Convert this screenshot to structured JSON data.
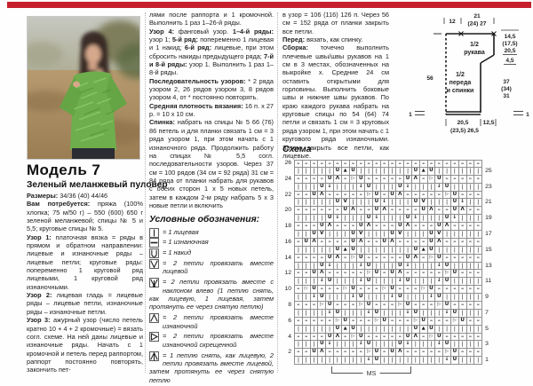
{
  "page": {
    "accent_color": "#c5202c"
  },
  "model": {
    "title": "Модель 7",
    "subtitle": "Зеленый меланжевый пуловер"
  },
  "photo": {
    "description": "woman in green melange lace pullover outdoors"
  },
  "col1": {
    "paragraphs": [
      [
        [
          "b",
          "Размеры:"
        ],
        [
          "r",
          " 34/36 (40) 44/46"
        ]
      ],
      [
        [
          "b",
          "Вам потребуется:"
        ],
        [
          "r",
          " пряжа (100% хлопка; 75 м/50 г) – 550 (600) 650 г зеленой меланжевой; спицы № 5 и 5,5; круговые спицы № 5."
        ]
      ],
      [
        [
          "b",
          "Узор 1:"
        ],
        [
          "r",
          " платочная вязка = ряды в прямом и обратном направлении: лицевые и изнаночные ряды – лицевые петли; круговые ряды: попеременно 1 круговой ряд лицевыми, 1 круговой ряд изнаночными."
        ]
      ],
      [
        [
          "b",
          "Узор 2:"
        ],
        [
          "r",
          " лицевая гладь = лицевые ряды – лицевые петли, изнаночные ряды – изнаночные петли."
        ]
      ],
      [
        [
          "b",
          "Узор 3:"
        ],
        [
          "r",
          " ажурный узор (число петель кратно 10 + 4 + 2 кромочные) = вязать согл. схеме. На ней даны лицевые и изнаночные ряды. Начать с 1 кромочной и петель перед раппортом, раппорт постоянно повторять, закончить пет-"
        ]
      ]
    ]
  },
  "col2": {
    "paragraphs": [
      [
        [
          "r",
          "лями после раппорта и 1 кромочной. Выполнить 1 раз 1–26-й ряды."
        ]
      ],
      [
        [
          "b",
          "Узор 4:"
        ],
        [
          "r",
          " фанговый узор. "
        ],
        [
          "b",
          "1–4-й ряды:"
        ],
        [
          "r",
          " узор 1; "
        ],
        [
          "b",
          "5-й ряд:"
        ],
        [
          "r",
          " попеременно 1 лицевая и 1 накид; "
        ],
        [
          "b",
          "6-й ряд:"
        ],
        [
          "r",
          " лицевые, при этом сбросить накиды предыдущего ряда; "
        ],
        [
          "b",
          "7-й и 8-й ряды:"
        ],
        [
          "r",
          " узор 1. Выполнить 1 раз 1–8-й ряды."
        ]
      ],
      [
        [
          "b",
          "Последовательность узоров:"
        ],
        [
          "r",
          " * 2 ряда узором 2, 26 рядов узором 3, 8 рядов узором 4, от * постоянно повторять."
        ]
      ],
      [
        [
          "b",
          "Средняя плотность вязания:"
        ],
        [
          "r",
          " 16 п. х 27 р. = 10 х 10 см."
        ]
      ],
      [
        [
          "b",
          "Спинка:"
        ],
        [
          "r",
          " набрать на спицы № 5 66 (76) 86 петель и для планки связать 1 см = 3 ряда узором 1, при этом начать с 1 изнаночного ряда. Продолжить работу на спицах № 5,5 согл. последовательности узоров. Через 37 см = 100 рядов (34 см = 92 ряда) 31 см = 84 ряда от планки набрать для рукавов с обеих сторон 1 х 5 новых петель, затем в каждом 2-м ряду набрать 5 х 3 новые петли и включить"
        ]
      ]
    ],
    "legend": {
      "heading": "Условные обозначения:",
      "items": [
        {
          "icon": "knit-icon",
          "text": "= 1 лицевая"
        },
        {
          "icon": "purl-icon",
          "text": "= 1 изнаночная"
        },
        {
          "icon": "yarn-over-icon",
          "text": "= 1 накид"
        },
        {
          "icon": "k2tog-icon",
          "text": "= 2 петли провязать вместе лицевой"
        },
        {
          "icon": "skp-icon",
          "text": "= 2 петли провязать вместе с наклоном влево (1 петлю снять, как лицевую, 1 лицевая, затем протянуть ее через снятую петлю)"
        },
        {
          "icon": "p2tog-icon",
          "text": "= 2 петли провязать вместе изнаночной"
        },
        {
          "icon": "p2tog-tbl-icon",
          "text": "= 2 петли провязать вместе изнаночной скрещенной"
        },
        {
          "icon": "sl1-k2tog-psso-icon",
          "text": "= 1 петлю снять, как лицевую, 2 петли провязать вместе лицевой, затем протянуть ее через снятую петлю"
        }
      ]
    }
  },
  "col3": {
    "paragraphs": [
      [
        [
          "r",
          "в узор = 106 (116) 126 п. Через 56 см = 152 ряда от планки закрыть все петли."
        ]
      ],
      [
        [
          "b",
          "Перед:"
        ],
        [
          "r",
          " вязать, как спинку."
        ]
      ],
      [
        [
          "b",
          "Сборка:"
        ],
        [
          "r",
          " точечно выполнить плечевые швы/швы рукавов на 1 см в 3 местах, обозначенных на выкройке х. Средние 24 см оставить открытыми для горловины. Выполнить боковые швы и нижние швы рукавов. По краю каждого рукава набрать на круговые спицы по 54 (64) 74 петли и связать 1 см = 3 круговых ряда узором 1, при этом начать с 1 кругового ряда изнаночными. Затем закрыть все петли, как лицевые."
        ]
      ]
    ],
    "chart_heading": "Схема"
  },
  "schematic": {
    "top_left": "12",
    "top_right_1": "21",
    "top_right_2": "(24) 27",
    "left_height": "56",
    "sleeve_1": "1/2",
    "sleeve_2": "рукава",
    "body_1": "1/2",
    "body_2": "переда",
    "body_3": "и спинки",
    "right_top_1": "14,5",
    "right_top_2": "(17,5)",
    "right_top_3": "20,5",
    "right_step": "4,5",
    "right_side_1": "37",
    "right_side_2": "(34)",
    "right_side_3": "31",
    "bottom_1": "20,5",
    "bottom_2": "(23,5) 26,5",
    "bottom_right": "12,5",
    "border_left": "1",
    "border_right": "1"
  },
  "chart": {
    "ms_label": "MS",
    "symbol_map": {
      "k": "|",
      "p": "–",
      "o": "U",
      "v": "V",
      "w": "↓",
      "a": "Λ",
      "x": "▷",
      "t": "▲"
    },
    "rows": [
      {
        "l": "26",
        "r": "",
        "c": "pppppppppppppppppppppppp"
      },
      {
        "l": "",
        "r": "25",
        "c": "kkkkkotokkkkkkkotokkkkkk"
      },
      {
        "l": "24",
        "r": "",
        "c": "ppppoapxopppppoapxoppppp"
      },
      {
        "l": "",
        "r": "23",
        "c": "kkkowkkkwokkkowkkkwokkkk"
      },
      {
        "l": "22",
        "r": "",
        "c": "ppoapppppxopoapppppxoppp"
      },
      {
        "l": "",
        "r": "21",
        "c": "kkkkkovkkkowkkkovkkkowkk"
      },
      {
        "l": "20",
        "r": "",
        "c": "ppppppoappoappppoappoapp"
      },
      {
        "l": "",
        "r": "19",
        "c": "kkkkowkkkowkkkowkkkowkkk"
      },
      {
        "l": "18",
        "r": "",
        "c": "pppoapppoapppoapppoapppp"
      },
      {
        "l": "",
        "r": "17",
        "c": "kkovkkkovkkkovkkkovkkkkk"
      },
      {
        "l": "16",
        "r": "",
        "c": "poappppoappoappppoappppp"
      },
      {
        "l": "",
        "r": "15",
        "c": "kkkkkotokkkkkkkotokkkkkk"
      },
      {
        "l": "14",
        "r": "",
        "c": "ppppoapxopppppoapxoppppp"
      },
      {
        "l": "",
        "r": "13",
        "c": "kkkowkkkwokkkowkkkwokkkk"
      },
      {
        "l": "12",
        "r": "",
        "c": "ppoapppppxopoapppppxoppp"
      },
      {
        "l": "",
        "r": "11",
        "c": "kkkwokkkwokkkwokkkwokkkk"
      },
      {
        "l": "10",
        "r": "",
        "c": "pxopppxopppxopppxopppppp"
      },
      {
        "l": "",
        "r": "9",
        "c": "kkwokkkwokkkwokkkwokkkkk"
      },
      {
        "l": "8",
        "r": "",
        "c": "pppxopppxopppxopppxopppp"
      },
      {
        "l": "",
        "r": "7",
        "c": "kkkkwokkkwokkkwokkkwokkk"
      },
      {
        "l": "6",
        "r": "",
        "c": "pppppxopppxopppxopppxopp"
      },
      {
        "l": "",
        "r": "5",
        "c": "kkkkkotokkkkkkkotokkkkkk"
      },
      {
        "l": "4",
        "r": "",
        "c": "ppppoapxopppppoapxoppppp"
      },
      {
        "l": "",
        "r": "3",
        "c": "kkkowkkkwokkkowkkkwokkkk"
      },
      {
        "l": "2",
        "r": "",
        "c": "ppoapppppxopoapppppxoppp"
      },
      {
        "l": "",
        "r": "1",
        "c": "kkkkkkkkkwokkkkkkkkwokkk"
      }
    ]
  }
}
